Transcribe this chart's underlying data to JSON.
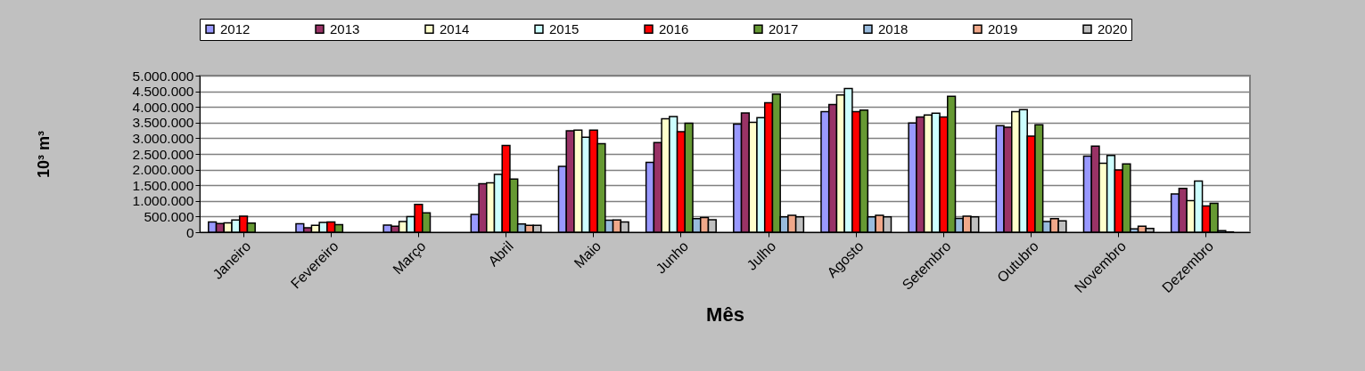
{
  "chart_data": {
    "type": "bar",
    "xlabel": "Mês",
    "ylabel": "10³ m³",
    "categories": [
      "Janeiro",
      "Fevereiro",
      "Março",
      "Abril",
      "Maio",
      "Junho",
      "Julho",
      "Agosto",
      "Setembro",
      "Outubro",
      "Novembro",
      "Dezembro"
    ],
    "series": [
      {
        "name": "2012",
        "color": "#9999ff",
        "values": [
          330000,
          270000,
          230000,
          570000,
          2100000,
          2230000,
          3450000,
          3850000,
          3490000,
          3400000,
          2430000,
          1220000
        ]
      },
      {
        "name": "2013",
        "color": "#993366",
        "values": [
          280000,
          140000,
          190000,
          1550000,
          3240000,
          2860000,
          3810000,
          4080000,
          3680000,
          3350000,
          2750000,
          1400000
        ]
      },
      {
        "name": "2014",
        "color": "#ffffcc",
        "values": [
          300000,
          220000,
          340000,
          1580000,
          3260000,
          3620000,
          3510000,
          4380000,
          3740000,
          3850000,
          2200000,
          1010000
        ]
      },
      {
        "name": "2015",
        "color": "#ccffff",
        "values": [
          390000,
          310000,
          500000,
          1850000,
          3030000,
          3690000,
          3660000,
          4590000,
          3800000,
          3910000,
          2450000,
          1630000
        ]
      },
      {
        "name": "2016",
        "color": "#ff0000",
        "values": [
          510000,
          330000,
          890000,
          2770000,
          3260000,
          3210000,
          4130000,
          3850000,
          3680000,
          3070000,
          1990000,
          840000
        ]
      },
      {
        "name": "2017",
        "color": "#669933",
        "values": [
          290000,
          240000,
          620000,
          1700000,
          2830000,
          3480000,
          4410000,
          3900000,
          4340000,
          3430000,
          2180000,
          920000
        ]
      },
      {
        "name": "2018",
        "color": "#99bbdd",
        "values": [
          0,
          0,
          0,
          260000,
          380000,
          430000,
          490000,
          490000,
          440000,
          340000,
          110000,
          50000
        ]
      },
      {
        "name": "2019",
        "color": "#f0a88a",
        "values": [
          0,
          0,
          0,
          220000,
          390000,
          470000,
          540000,
          540000,
          510000,
          430000,
          190000,
          10000
        ]
      },
      {
        "name": "2020",
        "color": "#c0c0c0",
        "values": [
          0,
          0,
          0,
          220000,
          330000,
          400000,
          490000,
          490000,
          490000,
          360000,
          120000,
          0
        ]
      }
    ],
    "ylim": [
      0,
      5000000
    ],
    "yticks": [
      {
        "value": 0,
        "label": "0"
      },
      {
        "value": 500000,
        "label": "500.000"
      },
      {
        "value": 1000000,
        "label": "1.000.000"
      },
      {
        "value": 1500000,
        "label": "1.500.000"
      },
      {
        "value": 2000000,
        "label": "2.000.000"
      },
      {
        "value": 2500000,
        "label": "2.500.000"
      },
      {
        "value": 3000000,
        "label": "3.000.000"
      },
      {
        "value": 3500000,
        "label": "3.500.000"
      },
      {
        "value": 4000000,
        "label": "4.000.000"
      },
      {
        "value": 4500000,
        "label": "4.500.000"
      },
      {
        "value": 5000000,
        "label": "5.000.000"
      }
    ],
    "grid": "y",
    "legend": "top"
  }
}
